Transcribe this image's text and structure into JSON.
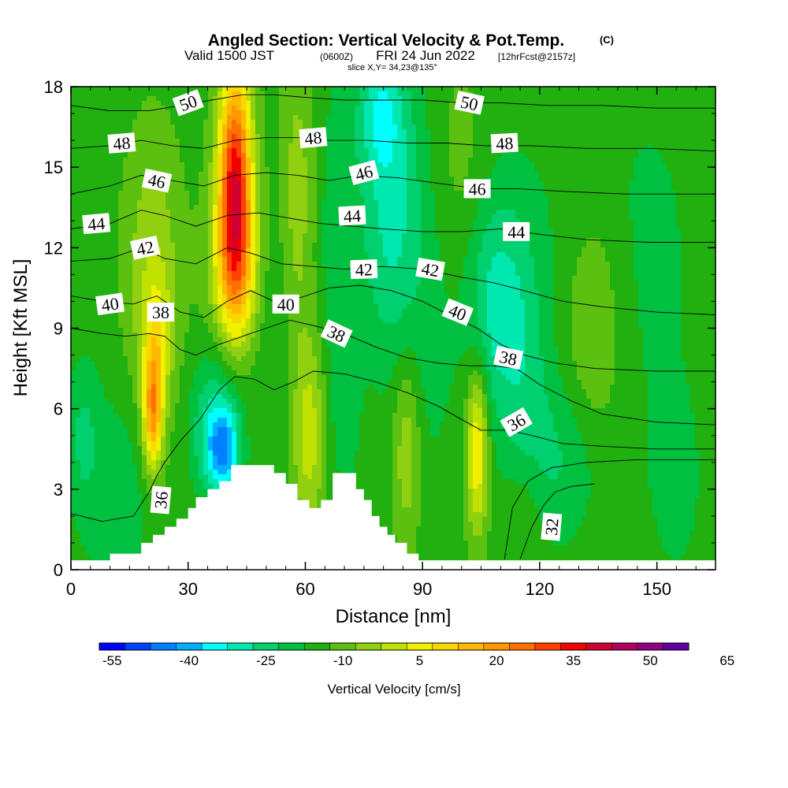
{
  "chart_data": {
    "type": "heatmap",
    "title": "Angled Section: Vertical Velocity & Pot.Temp.",
    "title_unit": "(C)",
    "subtitle_a": "Valid 1500 JST",
    "subtitle_b": "(0600Z)",
    "subtitle_c": "FRI 24 Jun 2022",
    "subtitle_d": "[12hrFcst@2157z]",
    "slice_label": "slice X,Y= 34,23@135°",
    "xlabel": "Distance [nm]",
    "ylabel": "Height [Kft MSL]",
    "xlim": [
      0,
      165
    ],
    "ylim": [
      0,
      18
    ],
    "xticks": [
      0,
      30,
      60,
      90,
      120,
      150
    ],
    "yticks": [
      0,
      3,
      6,
      9,
      12,
      15,
      18
    ],
    "colorbar_label": "Vertical Velocity [cm/s]",
    "colorbar_ticks": [
      "-55",
      "-40",
      "-25",
      "-10",
      "5",
      "20",
      "35",
      "50",
      "65"
    ],
    "colorbar_colors": [
      "#0000ff",
      "#0040ff",
      "#0080ff",
      "#00b0ff",
      "#00ffff",
      "#00e8b0",
      "#00d070",
      "#00c040",
      "#20b010",
      "#5cc010",
      "#90d010",
      "#c0e000",
      "#f0f000",
      "#f8d800",
      "#ffb800",
      "#ff9800",
      "#ff7000",
      "#ff4000",
      "#f00000",
      "#d00030",
      "#b00060",
      "#900080",
      "#6000a0"
    ],
    "velocity_field": {
      "base_value": 2,
      "features": [
        {
          "x": 21,
          "y": 5.8,
          "sx": 1.8,
          "sy": 1.5,
          "value": 48
        },
        {
          "x": 21,
          "y": 11.0,
          "sx": 5,
          "sy": 3.5,
          "value": 18
        },
        {
          "x": 22,
          "y": 8.5,
          "sx": 2.5,
          "sy": 1.5,
          "value": 20
        },
        {
          "x": 42,
          "y": 14.5,
          "sx": 3,
          "sy": 3.2,
          "value": 70
        },
        {
          "x": 42,
          "y": 11.0,
          "sx": 4.5,
          "sy": 2.5,
          "value": 30
        },
        {
          "x": 40,
          "y": 7.5,
          "sx": 5,
          "sy": 1.5,
          "value": -12
        },
        {
          "x": 39,
          "y": 4.5,
          "sx": 3,
          "sy": 1.3,
          "value": -45
        },
        {
          "x": 34,
          "y": 5.0,
          "sx": 3,
          "sy": 1.5,
          "value": -12
        },
        {
          "x": 12,
          "y": 2.5,
          "sx": 6,
          "sy": 3,
          "value": -10
        },
        {
          "x": 3,
          "y": 5.0,
          "sx": 3,
          "sy": 2,
          "value": -12
        },
        {
          "x": 61,
          "y": 5.0,
          "sx": 3,
          "sy": 2.5,
          "value": 22
        },
        {
          "x": 58,
          "y": 14.0,
          "sx": 3,
          "sy": 4,
          "value": 14
        },
        {
          "x": 52,
          "y": 9.0,
          "sx": 3,
          "sy": 3,
          "value": -6
        },
        {
          "x": 70,
          "y": 6.0,
          "sx": 3,
          "sy": 2.5,
          "value": -8
        },
        {
          "x": 68,
          "y": 12.5,
          "sx": 3,
          "sy": 4,
          "value": -10
        },
        {
          "x": 82,
          "y": 13.5,
          "sx": 6,
          "sy": 4,
          "value": -22
        },
        {
          "x": 79,
          "y": 17.0,
          "sx": 4,
          "sy": 1.5,
          "value": -18
        },
        {
          "x": 86,
          "y": 4.5,
          "sx": 2.5,
          "sy": 2.5,
          "value": 18
        },
        {
          "x": 92,
          "y": 8.0,
          "sx": 5,
          "sy": 4,
          "value": -6
        },
        {
          "x": 104,
          "y": 4.5,
          "sx": 2,
          "sy": 2.2,
          "value": 35
        },
        {
          "x": 100,
          "y": 15.0,
          "sx": 5,
          "sy": 3,
          "value": 6
        },
        {
          "x": 108,
          "y": 10.0,
          "sx": 5,
          "sy": 3,
          "value": -20
        },
        {
          "x": 116,
          "y": 8.5,
          "sx": 5,
          "sy": 4,
          "value": -14
        },
        {
          "x": 125,
          "y": 4.0,
          "sx": 8,
          "sy": 2.2,
          "value": -12
        },
        {
          "x": 116,
          "y": 2.5,
          "sx": 4,
          "sy": 1.5,
          "value": 8
        },
        {
          "x": 134,
          "y": 9.0,
          "sx": 5,
          "sy": 3.5,
          "value": 12
        },
        {
          "x": 148,
          "y": 12.0,
          "sx": 10,
          "sy": 5,
          "value": -6
        },
        {
          "x": 155,
          "y": 3.0,
          "sx": 6,
          "sy": 3,
          "value": -6
        },
        {
          "x": 130,
          "y": 15.0,
          "sx": 6,
          "sy": 3,
          "value": -4
        }
      ]
    },
    "terrain": [
      [
        10,
        0.4
      ],
      [
        10,
        0.6
      ],
      [
        18,
        0.6
      ],
      [
        18,
        1
      ],
      [
        21,
        1
      ],
      [
        21,
        1.3
      ],
      [
        24,
        1.3
      ],
      [
        24,
        1.6
      ],
      [
        27,
        1.6
      ],
      [
        27,
        1.9
      ],
      [
        30,
        1.9
      ],
      [
        30,
        2.3
      ],
      [
        32,
        2.3
      ],
      [
        32,
        2.7
      ],
      [
        35,
        2.7
      ],
      [
        35,
        3.0
      ],
      [
        38,
        3.0
      ],
      [
        38,
        3.3
      ],
      [
        41,
        3.3
      ],
      [
        41,
        3.9
      ],
      [
        52,
        3.9
      ],
      [
        52,
        3.6
      ],
      [
        55,
        3.6
      ],
      [
        55,
        3.2
      ],
      [
        58,
        3.2
      ],
      [
        58,
        2.6
      ],
      [
        61,
        2.6
      ],
      [
        61,
        2.3
      ],
      [
        64,
        2.3
      ],
      [
        64,
        2.6
      ],
      [
        67,
        2.6
      ],
      [
        67,
        3.6
      ],
      [
        73,
        3.6
      ],
      [
        73,
        3.0
      ],
      [
        75,
        3.0
      ],
      [
        75,
        2.6
      ],
      [
        77,
        2.6
      ],
      [
        77,
        2.0
      ],
      [
        79,
        2.0
      ],
      [
        79,
        1.6
      ],
      [
        81,
        1.6
      ],
      [
        81,
        1.3
      ],
      [
        83,
        1.3
      ],
      [
        83,
        1.0
      ],
      [
        86,
        1.0
      ],
      [
        86,
        0.6
      ],
      [
        89,
        0.6
      ],
      [
        89,
        0.4
      ]
    ],
    "theta_contours": [
      {
        "value": 32,
        "points": [
          [
            115,
            0.4
          ],
          [
            118,
            1.6
          ],
          [
            121,
            2.4
          ],
          [
            124,
            2.9
          ],
          [
            128,
            3.1
          ],
          [
            134,
            3.2
          ]
        ]
      },
      {
        "value": 34,
        "points": [
          [
            111,
            0.4
          ],
          [
            113,
            2.3
          ],
          [
            117,
            3.3
          ],
          [
            123,
            3.8
          ],
          [
            132,
            4.0
          ],
          [
            145,
            4.1
          ],
          [
            165,
            4.1
          ]
        ]
      },
      {
        "value": 36,
        "points": [
          [
            0,
            2.1
          ],
          [
            8,
            1.8
          ],
          [
            16,
            2.0
          ],
          [
            20,
            2.9
          ],
          [
            22,
            3.5
          ],
          [
            24,
            4.0
          ],
          [
            28,
            4.8
          ],
          [
            33,
            5.6
          ],
          [
            38,
            6.7
          ],
          [
            42,
            7.2
          ],
          [
            47,
            7.1
          ],
          [
            52,
            6.7
          ],
          [
            57,
            7.0
          ],
          [
            62,
            7.4
          ],
          [
            70,
            7.3
          ],
          [
            78,
            7.0
          ],
          [
            86,
            6.6
          ],
          [
            94,
            6.1
          ],
          [
            100,
            5.6
          ],
          [
            105,
            5.2
          ],
          [
            112,
            5.2
          ],
          [
            118,
            5.0
          ],
          [
            126,
            4.7
          ],
          [
            136,
            4.6
          ],
          [
            150,
            4.5
          ],
          [
            165,
            4.5
          ]
        ]
      },
      {
        "value": 38,
        "points": [
          [
            0,
            9.0
          ],
          [
            8,
            8.8
          ],
          [
            14,
            8.7
          ],
          [
            20,
            8.8
          ],
          [
            24,
            8.7
          ],
          [
            28,
            8.2
          ],
          [
            32,
            8.0
          ],
          [
            38,
            8.4
          ],
          [
            44,
            8.7
          ],
          [
            50,
            9.0
          ],
          [
            56,
            9.3
          ],
          [
            62,
            9.1
          ],
          [
            70,
            8.8
          ],
          [
            78,
            8.3
          ],
          [
            86,
            7.9
          ],
          [
            94,
            7.7
          ],
          [
            102,
            7.6
          ],
          [
            108,
            7.6
          ],
          [
            114,
            7.5
          ],
          [
            120,
            6.9
          ],
          [
            128,
            6.3
          ],
          [
            136,
            5.8
          ],
          [
            150,
            5.5
          ],
          [
            165,
            5.4
          ]
        ]
      },
      {
        "value": 40,
        "points": [
          [
            0,
            10.2
          ],
          [
            8,
            10.0
          ],
          [
            16,
            9.9
          ],
          [
            22,
            10.2
          ],
          [
            28,
            9.6
          ],
          [
            34,
            9.4
          ],
          [
            40,
            10.0
          ],
          [
            46,
            10.4
          ],
          [
            52,
            10.0
          ],
          [
            58,
            10.1
          ],
          [
            66,
            10.5
          ],
          [
            74,
            10.6
          ],
          [
            82,
            10.4
          ],
          [
            90,
            10.0
          ],
          [
            98,
            9.4
          ],
          [
            104,
            9.0
          ],
          [
            110,
            8.4
          ],
          [
            116,
            8.0
          ],
          [
            124,
            7.7
          ],
          [
            134,
            7.5
          ],
          [
            150,
            7.4
          ],
          [
            165,
            7.4
          ]
        ]
      },
      {
        "value": 42,
        "points": [
          [
            0,
            11.5
          ],
          [
            10,
            11.6
          ],
          [
            18,
            12.0
          ],
          [
            24,
            11.6
          ],
          [
            32,
            11.4
          ],
          [
            40,
            12.0
          ],
          [
            46,
            11.8
          ],
          [
            54,
            11.4
          ],
          [
            62,
            11.3
          ],
          [
            70,
            11.2
          ],
          [
            80,
            11.3
          ],
          [
            90,
            11.2
          ],
          [
            100,
            10.9
          ],
          [
            108,
            10.7
          ],
          [
            116,
            10.4
          ],
          [
            126,
            10.0
          ],
          [
            136,
            9.8
          ],
          [
            150,
            9.6
          ],
          [
            165,
            9.5
          ]
        ]
      },
      {
        "value": 44,
        "points": [
          [
            0,
            12.7
          ],
          [
            10,
            12.9
          ],
          [
            18,
            13.4
          ],
          [
            24,
            13.2
          ],
          [
            32,
            12.8
          ],
          [
            40,
            13.2
          ],
          [
            48,
            13.3
          ],
          [
            56,
            13.1
          ],
          [
            64,
            12.9
          ],
          [
            72,
            12.8
          ],
          [
            80,
            12.7
          ],
          [
            90,
            12.6
          ],
          [
            100,
            12.6
          ],
          [
            110,
            12.7
          ],
          [
            120,
            12.5
          ],
          [
            132,
            12.3
          ],
          [
            148,
            12.2
          ],
          [
            165,
            12.2
          ]
        ]
      },
      {
        "value": 46,
        "points": [
          [
            0,
            14.0
          ],
          [
            10,
            14.3
          ],
          [
            18,
            14.7
          ],
          [
            26,
            14.5
          ],
          [
            34,
            14.3
          ],
          [
            42,
            14.7
          ],
          [
            50,
            14.8
          ],
          [
            58,
            14.7
          ],
          [
            66,
            14.5
          ],
          [
            74,
            14.7
          ],
          [
            84,
            14.6
          ],
          [
            94,
            14.4
          ],
          [
            104,
            14.2
          ],
          [
            114,
            14.2
          ],
          [
            126,
            14.1
          ],
          [
            142,
            14.0
          ],
          [
            165,
            14.0
          ]
        ]
      },
      {
        "value": 48,
        "points": [
          [
            0,
            15.7
          ],
          [
            10,
            15.8
          ],
          [
            18,
            16.0
          ],
          [
            26,
            15.8
          ],
          [
            34,
            15.7
          ],
          [
            42,
            16.0
          ],
          [
            50,
            16.1
          ],
          [
            58,
            16.1
          ],
          [
            66,
            16.0
          ],
          [
            76,
            16.0
          ],
          [
            86,
            15.9
          ],
          [
            96,
            15.9
          ],
          [
            106,
            15.8
          ],
          [
            118,
            15.8
          ],
          [
            132,
            15.7
          ],
          [
            148,
            15.7
          ],
          [
            165,
            15.6
          ]
        ]
      },
      {
        "value": 50,
        "points": [
          [
            0,
            17.3
          ],
          [
            10,
            17.1
          ],
          [
            20,
            17.1
          ],
          [
            28,
            17.3
          ],
          [
            36,
            17.5
          ],
          [
            44,
            17.7
          ],
          [
            52,
            17.7
          ],
          [
            60,
            17.6
          ],
          [
            70,
            17.5
          ],
          [
            80,
            17.5
          ],
          [
            90,
            17.5
          ],
          [
            100,
            17.4
          ],
          [
            110,
            17.4
          ],
          [
            122,
            17.3
          ],
          [
            136,
            17.3
          ],
          [
            150,
            17.2
          ],
          [
            165,
            17.2
          ]
        ]
      }
    ],
    "contour_labels": [
      {
        "text": "50",
        "x": 30,
        "y": 17.4,
        "angle": -20
      },
      {
        "text": "48",
        "x": 13,
        "y": 15.9,
        "angle": -5
      },
      {
        "text": "46",
        "x": 22,
        "y": 14.5,
        "angle": 12
      },
      {
        "text": "44",
        "x": 6.5,
        "y": 12.9,
        "angle": -5
      },
      {
        "text": "42",
        "x": 19,
        "y": 12.0,
        "angle": -12
      },
      {
        "text": "40",
        "x": 10,
        "y": 9.9,
        "angle": -8
      },
      {
        "text": "38",
        "x": 23,
        "y": 9.6,
        "angle": 0
      },
      {
        "text": "36",
        "x": 23,
        "y": 2.6,
        "angle": -85
      },
      {
        "text": "48",
        "x": 62,
        "y": 16.1,
        "angle": -5
      },
      {
        "text": "40",
        "x": 55,
        "y": 9.9,
        "angle": 0
      },
      {
        "text": "38",
        "x": 68,
        "y": 8.8,
        "angle": 25
      },
      {
        "text": "46",
        "x": 75,
        "y": 14.8,
        "angle": -15
      },
      {
        "text": "44",
        "x": 72,
        "y": 13.2,
        "angle": -3
      },
      {
        "text": "42",
        "x": 75,
        "y": 11.2,
        "angle": -2
      },
      {
        "text": "50",
        "x": 102,
        "y": 17.4,
        "angle": 12
      },
      {
        "text": "48",
        "x": 111,
        "y": 15.9,
        "angle": -3
      },
      {
        "text": "46",
        "x": 104,
        "y": 14.2,
        "angle": 0
      },
      {
        "text": "44",
        "x": 114,
        "y": 12.6,
        "angle": 0
      },
      {
        "text": "42",
        "x": 92,
        "y": 11.2,
        "angle": 10
      },
      {
        "text": "40",
        "x": 99,
        "y": 9.6,
        "angle": 22
      },
      {
        "text": "38",
        "x": 112,
        "y": 7.9,
        "angle": 12
      },
      {
        "text": "36",
        "x": 114,
        "y": 5.5,
        "angle": -30
      },
      {
        "text": "32",
        "x": 123,
        "y": 1.6,
        "angle": -85
      }
    ]
  }
}
